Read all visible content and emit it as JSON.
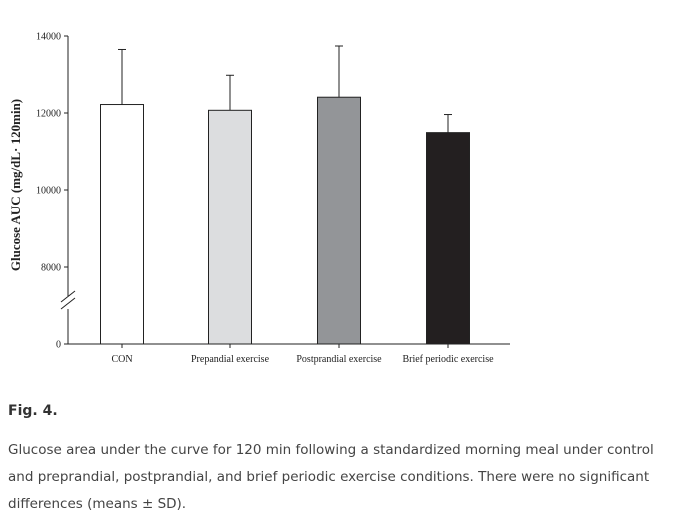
{
  "chart_data": {
    "type": "bar",
    "categories": [
      "CON",
      "Prepandial exercise",
      "Postprandial exercise",
      "Brief periodic exercise"
    ],
    "values": [
      12220,
      12070,
      12410,
      11490
    ],
    "error_sd": [
      1430,
      910,
      1330,
      470
    ],
    "bar_colors": [
      "#ffffff",
      "#dcdddf",
      "#939598",
      "#231f20"
    ],
    "ylabel": "Glucose AUC (mg/dL· 120min)",
    "yticks": [
      0,
      8000,
      10000,
      12000,
      14000
    ],
    "y_break": [
      0,
      8000
    ],
    "ylim": [
      8000,
      14000
    ],
    "grid": false,
    "legend": "none"
  },
  "figure": {
    "label": "Fig. 4.",
    "caption": "Glucose area under the curve for 120 min following a standardized morning meal under control and preprandial, postprandial, and brief periodic exercise conditions. There were no significant differences (means ± SD)."
  }
}
